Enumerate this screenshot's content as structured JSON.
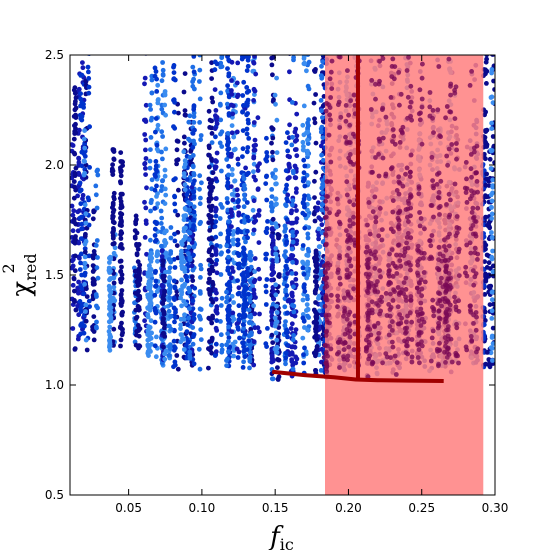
{
  "chart_data": {
    "type": "scatter",
    "title": "",
    "xlabel": {
      "base": "f",
      "sub": "ic"
    },
    "ylabel": {
      "base": "χ",
      "sup": "2",
      "sub": "red"
    },
    "xlim": [
      0.01,
      0.3
    ],
    "ylim": [
      0.5,
      2.5
    ],
    "grid": false,
    "x_ticks": [
      {
        "value": 0.05,
        "label": "0.05"
      },
      {
        "value": 0.1,
        "label": "0.10"
      },
      {
        "value": 0.15,
        "label": "0.15"
      },
      {
        "value": 0.2,
        "label": "0.20"
      },
      {
        "value": 0.25,
        "label": "0.25"
      },
      {
        "value": 0.3,
        "label": "0.30"
      }
    ],
    "y_ticks": [
      {
        "value": 0.5,
        "label": "0.5"
      },
      {
        "value": 1.0,
        "label": "1.0"
      },
      {
        "value": 1.5,
        "label": "1.5"
      },
      {
        "value": 2.0,
        "label": "2.0"
      },
      {
        "value": 2.5,
        "label": "2.5"
      }
    ],
    "highlight_band": {
      "x_start": 0.184,
      "x_end": 0.292,
      "color": "#ff7f7f",
      "opacity": 0.85
    },
    "best_fit_curve": {
      "color": "#a00000",
      "points": [
        [
          0.148,
          1.06
        ],
        [
          0.17,
          1.045
        ],
        [
          0.19,
          1.035
        ],
        [
          0.205,
          1.025
        ],
        [
          0.22,
          1.022
        ],
        [
          0.24,
          1.02
        ],
        [
          0.265,
          1.018
        ]
      ]
    },
    "best_fit_vertical": {
      "x": 0.2065,
      "y_start": 1.02,
      "y_end": 2.5,
      "color": "#a00000"
    },
    "scatter_colors": [
      "#0a0a8c",
      "#0033cc",
      "#1e6ee6",
      "#3a8cf0",
      "#1418b4"
    ],
    "overlay_color": "#7a0a55",
    "clusters": [
      {
        "x_min": 0.011,
        "x_max": 0.02,
        "y_floor": 1.14,
        "density": 0.45
      },
      {
        "x_min": 0.02,
        "x_max": 0.045,
        "y_floor": 1.12,
        "density": 0.35
      },
      {
        "x_min": 0.045,
        "x_max": 0.07,
        "y_floor": 1.1,
        "density": 0.4
      },
      {
        "x_min": 0.07,
        "x_max": 0.1,
        "y_floor": 1.06,
        "density": 0.9
      },
      {
        "x_min": 0.1,
        "x_max": 0.125,
        "y_floor": 1.06,
        "density": 0.75
      },
      {
        "x_min": 0.125,
        "x_max": 0.148,
        "y_floor": 1.05,
        "density": 0.55
      },
      {
        "x_min": 0.148,
        "x_max": 0.184,
        "y_floor": 1.01,
        "density": 0.85
      },
      {
        "x_min": 0.184,
        "x_max": 0.215,
        "y_floor": 1.01,
        "density": 1.0
      },
      {
        "x_min": 0.215,
        "x_max": 0.26,
        "y_floor": 1.02,
        "density": 0.95
      },
      {
        "x_min": 0.26,
        "x_max": 0.292,
        "y_floor": 1.03,
        "density": 0.85
      },
      {
        "x_min": 0.292,
        "x_max": 0.2995,
        "y_floor": 1.02,
        "density": 0.6
      }
    ]
  }
}
